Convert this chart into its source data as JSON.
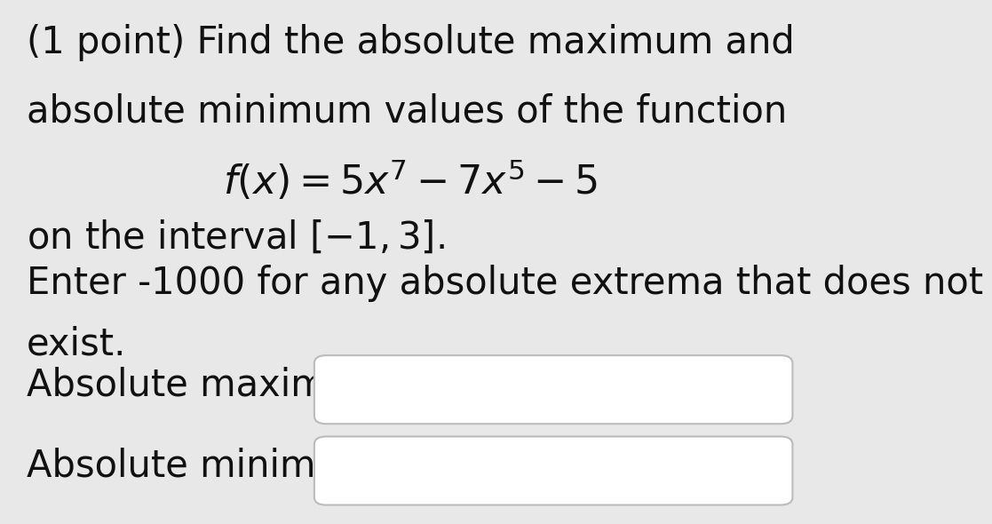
{
  "background_color": "#e8e8e8",
  "text_color": "#111111",
  "line1": "(1 point) Find the absolute maximum and",
  "line2": "absolute minimum values of the function",
  "formula": "$f(x) = 5x^7 - 7x^5 - 5$",
  "line4_a": "on the interval ",
  "line4_b": "$[-1, 3]$.",
  "line5": "Enter -1000 for any absolute extrema that does not",
  "line6": "exist.",
  "label_max": "Absolute maximum =",
  "label_min": "Absolute minimum =",
  "main_fontsize": 30,
  "formula_fontsize": 32,
  "box_border_color": "#bbbbbb",
  "box_face_color": "#ffffff"
}
